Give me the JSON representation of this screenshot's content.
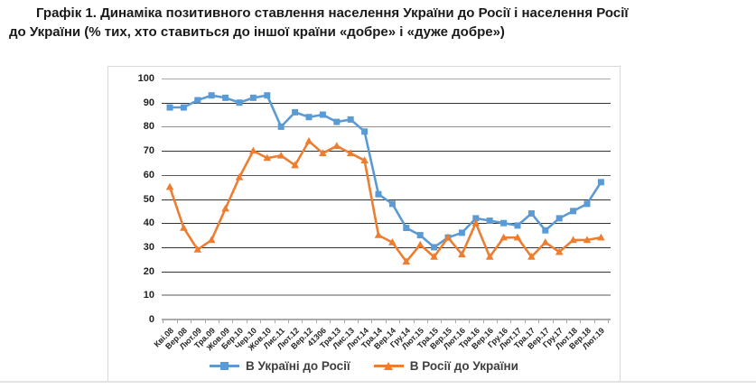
{
  "page": {
    "title_lines": [
      "Графік 1. Динаміка позитивного ставлення населення України до Росії і населення Росії",
      "до України (% тих, хто ставиться до іншої країни «добре» і «дуже добре»)"
    ]
  },
  "chart_data": {
    "type": "line",
    "categories": [
      "Кві.08",
      "Вер.08",
      "Лют.09",
      "Тра.09",
      "Жов.09",
      "Бер.10",
      "Чер.10",
      "Жов.10",
      "Лис.11",
      "Лют.12",
      "Вер.12",
      "41306",
      "Тра.13",
      "Лис.13",
      "Лют.14",
      "Тра.14",
      "Вер.14",
      "Гру.14",
      "Лют.15",
      "Тра.15",
      "Вер.15",
      "Лют.16",
      "Тра.16",
      "Вер.16",
      "Гру.16",
      "Лют.17",
      "Тра.17",
      "Вер.17",
      "Гру.17",
      "Лют.18",
      "Вер.18",
      "Лют.19"
    ],
    "series": [
      {
        "name": "В Україні до Росії",
        "color": "#5B9BD5",
        "marker": "square",
        "values": [
          88,
          88,
          91,
          93,
          92,
          90,
          92,
          93,
          80,
          86,
          84,
          85,
          82,
          83,
          78,
          52,
          48,
          38,
          35,
          30,
          34,
          36,
          42,
          41,
          40,
          39,
          44,
          37,
          42,
          45,
          48,
          57
        ]
      },
      {
        "name": "В Росії до України",
        "color": "#ED7D31",
        "marker": "triangle",
        "values": [
          55,
          38,
          29,
          33,
          46,
          59,
          70,
          67,
          68,
          64,
          74,
          69,
          72,
          69,
          66,
          35,
          32,
          24,
          31,
          26,
          34,
          27,
          40,
          26,
          34,
          34,
          26,
          32,
          28,
          33,
          33,
          34
        ]
      }
    ],
    "ylim": [
      0,
      100
    ],
    "yticks": [
      0,
      10,
      20,
      30,
      40,
      50,
      60,
      70,
      80,
      90,
      100
    ],
    "grid": "horizontal",
    "legend_position": "bottom"
  }
}
